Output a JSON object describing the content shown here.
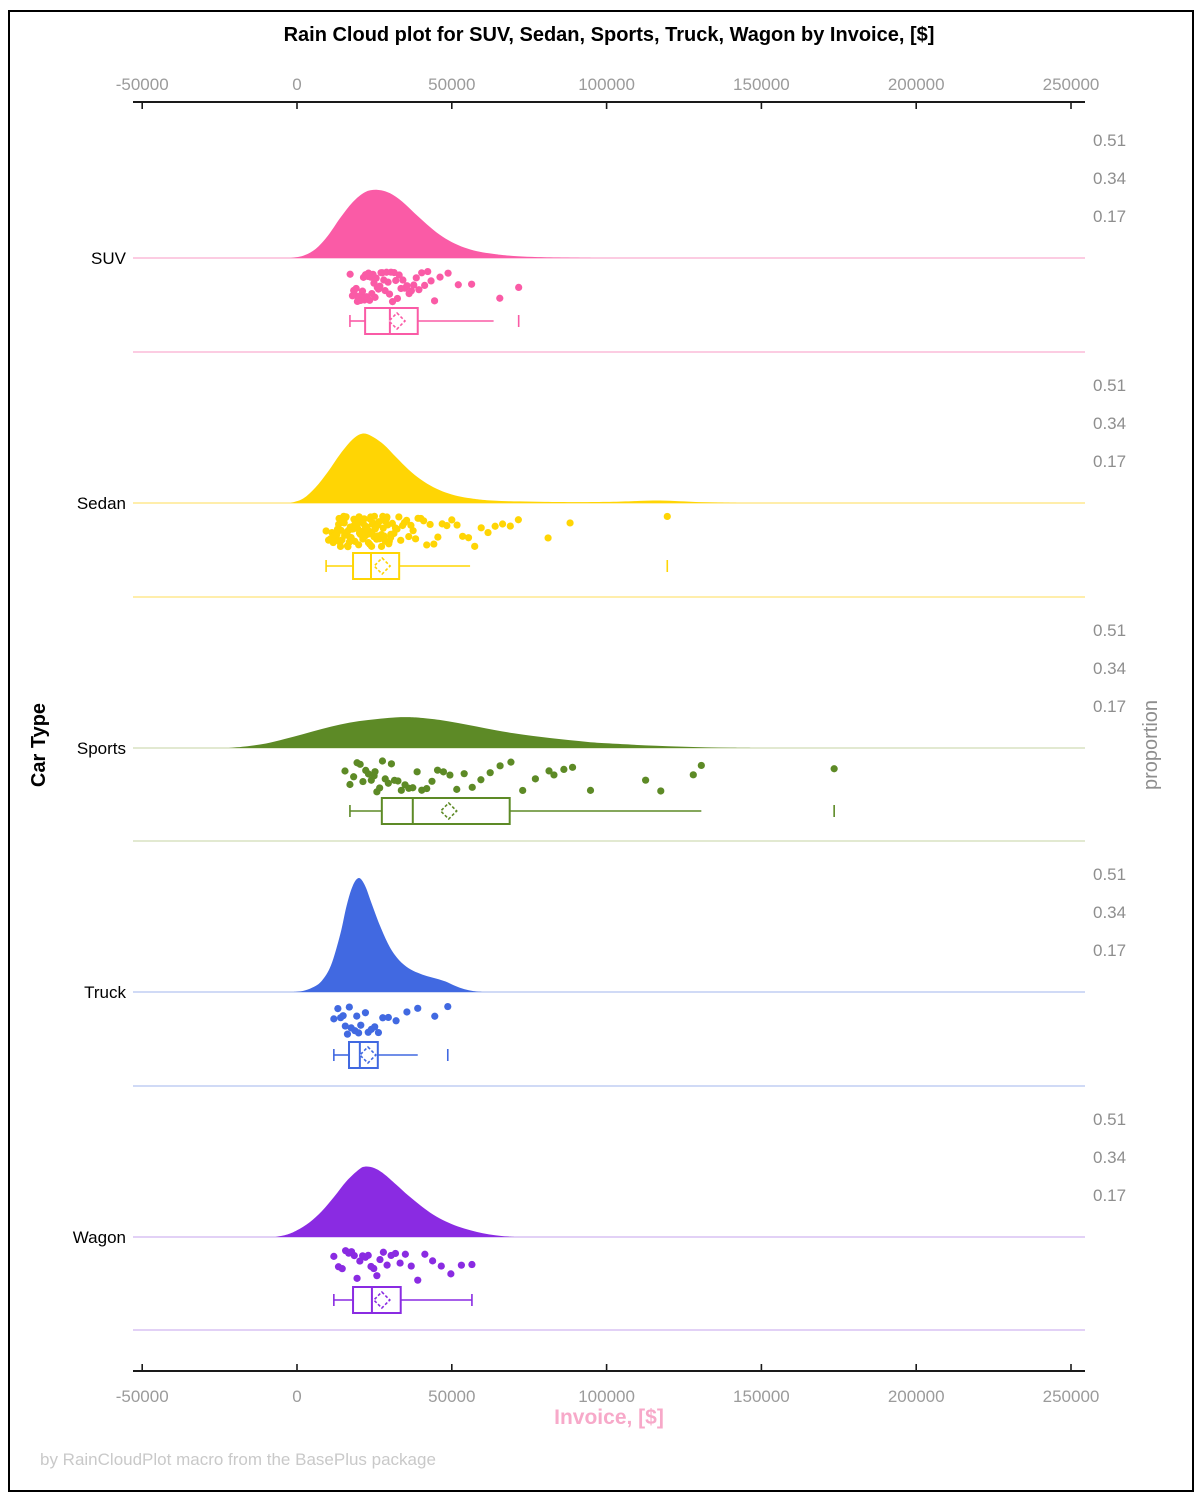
{
  "title": "Rain Cloud plot for SUV, Sedan, Sports, Truck, Wagon by Invoice, [$]",
  "footer": "by RainCloudPlot macro from the BasePlus package",
  "axis": {
    "x_label": "Invoice, [$]",
    "y_label_left": "Car Type",
    "y_label_right": "proportion",
    "tick_values": [
      -50000,
      0,
      50000,
      100000,
      150000,
      200000,
      250000
    ],
    "tick_labels": [
      "-50000",
      "0",
      "50000",
      "100000",
      "150000",
      "200000",
      "250000"
    ],
    "proportion_tick_labels": [
      "0.51",
      "0.34",
      "0.17"
    ],
    "proportion_tick_values": [
      0.51,
      0.34,
      0.17
    ]
  },
  "chart_data": {
    "type": "raincloud",
    "title": "Rain Cloud plot for SUV, Sedan, Sports, Truck, Wagon by Invoice, [$]",
    "xlabel": "Invoice, [$]",
    "ylabel": "Car Type",
    "ylabel_right": "proportion",
    "xlim": [
      -53000,
      254500
    ],
    "proportion_max": 0.51,
    "groups": [
      {
        "name": "SUV",
        "color": "#FA5BA6",
        "tint": "#FBBCD9",
        "density": [
          [
            -2000,
            0
          ],
          [
            2000,
            0.01
          ],
          [
            6000,
            0.04
          ],
          [
            10000,
            0.1
          ],
          [
            14000,
            0.18
          ],
          [
            18000,
            0.25
          ],
          [
            22000,
            0.295
          ],
          [
            26000,
            0.305
          ],
          [
            30000,
            0.29
          ],
          [
            34000,
            0.252
          ],
          [
            38000,
            0.2
          ],
          [
            42000,
            0.15
          ],
          [
            46000,
            0.105
          ],
          [
            50000,
            0.071
          ],
          [
            54000,
            0.047
          ],
          [
            58000,
            0.031
          ],
          [
            62000,
            0.021
          ],
          [
            66000,
            0.014
          ],
          [
            70000,
            0.009
          ],
          [
            76000,
            0.005
          ],
          [
            84000,
            0.002
          ],
          [
            95000,
            0
          ]
        ],
        "box": {
          "low": 17100,
          "q1": 22000,
          "median": 30000,
          "q3": 39000,
          "high": 63500,
          "far": 71600,
          "mean": 32300,
          "cap_high": false
        },
        "points": [
          17163,
          17909,
          18298,
          18744,
          19110,
          19513,
          19844,
          20201,
          20564,
          20912,
          21161,
          21470,
          21808,
          22114,
          22475,
          22835,
          23102,
          23465,
          23822,
          24166,
          24535,
          24858,
          25216,
          25574,
          25929,
          26312,
          26755,
          27151,
          27590,
          28024,
          28455,
          28926,
          29415,
          29887,
          30366,
          30856,
          31361,
          31892,
          32436,
          33003,
          33592,
          34205,
          34845,
          35513,
          36212,
          36945,
          37715,
          38524,
          39376,
          40275,
          41225,
          42231,
          43299,
          44435,
          46200,
          48800,
          52100,
          56400,
          65500,
          71600
        ]
      },
      {
        "name": "Sedan",
        "color": "#FFD504",
        "tint": "#FFE98F",
        "density": [
          [
            -2000,
            0
          ],
          [
            2000,
            0.02
          ],
          [
            6000,
            0.07
          ],
          [
            10000,
            0.14
          ],
          [
            14000,
            0.22
          ],
          [
            18000,
            0.285
          ],
          [
            21000,
            0.31
          ],
          [
            24000,
            0.3
          ],
          [
            28000,
            0.262
          ],
          [
            32000,
            0.205
          ],
          [
            36000,
            0.15
          ],
          [
            40000,
            0.105
          ],
          [
            44000,
            0.071
          ],
          [
            48000,
            0.047
          ],
          [
            52000,
            0.031
          ],
          [
            56000,
            0.021
          ],
          [
            60000,
            0.014
          ],
          [
            66000,
            0.009
          ],
          [
            72000,
            0.007
          ],
          [
            80000,
            0.005
          ],
          [
            90000,
            0.004
          ],
          [
            100000,
            0.005
          ],
          [
            108000,
            0.008
          ],
          [
            115000,
            0.011
          ],
          [
            122000,
            0.009
          ],
          [
            128000,
            0.005
          ],
          [
            135000,
            0.002
          ],
          [
            142000,
            0
          ]
        ],
        "box": {
          "low": 9400,
          "q1": 18100,
          "median": 23900,
          "q3": 33000,
          "high": 55900,
          "far": 119600,
          "mean": 27500,
          "cap_high": false
        },
        "points": [
          9400,
          10200,
          10800,
          11300,
          11700,
          12100,
          12500,
          12900,
          13300,
          13600,
          13900,
          14200,
          14500,
          14800,
          15100,
          15400,
          15700,
          16000,
          16300,
          16600,
          16900,
          17200,
          17500,
          17800,
          18100,
          18400,
          18700,
          19000,
          19300,
          19600,
          19900,
          20200,
          20500,
          20800,
          21100,
          21400,
          21700,
          22000,
          22300,
          22600,
          22900,
          23200,
          23500,
          23800,
          24100,
          24400,
          24700,
          25000,
          25300,
          25700,
          26100,
          26500,
          26900,
          27300,
          27700,
          28100,
          28500,
          28900,
          29300,
          29800,
          30300,
          30800,
          31300,
          31800,
          32300,
          32900,
          33500,
          34100,
          34700,
          35400,
          36100,
          36800,
          37500,
          38300,
          39100,
          40000,
          40900,
          41900,
          43000,
          44200,
          45500,
          46900,
          48400,
          50000,
          51700,
          53500,
          55400,
          57400,
          59500,
          61700,
          64000,
          66400,
          68900,
          71500,
          81100,
          88200,
          119600,
          13100,
          13450,
          14050,
          14650,
          15250,
          15850,
          16450,
          17050,
          17650,
          18250,
          18850,
          19450,
          20050,
          20650,
          21250,
          21850,
          22450,
          23050,
          23650,
          24250,
          24850,
          25450,
          26050,
          26650,
          27250,
          27850,
          28450,
          29050,
          29650,
          30250
        ]
      },
      {
        "name": "Sports",
        "color": "#5D8A26",
        "tint": "#D8E2C2",
        "density": [
          [
            -22000,
            0
          ],
          [
            -16000,
            0.008
          ],
          [
            -10000,
            0.02
          ],
          [
            -4000,
            0.04
          ],
          [
            2000,
            0.062
          ],
          [
            8000,
            0.085
          ],
          [
            14000,
            0.105
          ],
          [
            20000,
            0.12
          ],
          [
            26000,
            0.13
          ],
          [
            32000,
            0.137
          ],
          [
            36000,
            0.138
          ],
          [
            40000,
            0.135
          ],
          [
            46000,
            0.126
          ],
          [
            52000,
            0.112
          ],
          [
            58000,
            0.096
          ],
          [
            64000,
            0.08
          ],
          [
            70000,
            0.066
          ],
          [
            76000,
            0.054
          ],
          [
            82000,
            0.044
          ],
          [
            88000,
            0.035
          ],
          [
            94000,
            0.027
          ],
          [
            100000,
            0.021
          ],
          [
            108000,
            0.015
          ],
          [
            116000,
            0.01
          ],
          [
            124000,
            0.006
          ],
          [
            132000,
            0.003
          ],
          [
            140000,
            0.001
          ],
          [
            148000,
            0
          ]
        ],
        "box": {
          "low": 17100,
          "q1": 27400,
          "median": 37400,
          "q3": 68700,
          "high": 130600,
          "far": 173500,
          "mean": 49000,
          "cap_high": false
        },
        "points": [
          15500,
          17100,
          18300,
          19400,
          20400,
          21300,
          22200,
          23100,
          24000,
          24900,
          25200,
          25800,
          26700,
          27600,
          28500,
          29500,
          30500,
          31500,
          32600,
          33700,
          34900,
          36100,
          37400,
          38800,
          40300,
          41900,
          43600,
          45400,
          47300,
          49400,
          51600,
          54000,
          56600,
          59400,
          62400,
          65600,
          69100,
          72900,
          77000,
          81400,
          83000,
          86200,
          89000,
          94800,
          112600,
          117500,
          128000,
          130600,
          173500
        ]
      },
      {
        "name": "Truck",
        "color": "#4169E1",
        "tint": "#C0CDF4",
        "density": [
          [
            -1000,
            0
          ],
          [
            2000,
            0.005
          ],
          [
            5000,
            0.02
          ],
          [
            8000,
            0.05
          ],
          [
            11000,
            0.12
          ],
          [
            14000,
            0.26
          ],
          [
            16000,
            0.385
          ],
          [
            18000,
            0.475
          ],
          [
            20000,
            0.51
          ],
          [
            22000,
            0.475
          ],
          [
            24000,
            0.4
          ],
          [
            27000,
            0.29
          ],
          [
            30000,
            0.2
          ],
          [
            33000,
            0.142
          ],
          [
            36000,
            0.107
          ],
          [
            39000,
            0.086
          ],
          [
            42000,
            0.071
          ],
          [
            45000,
            0.06
          ],
          [
            48000,
            0.047
          ],
          [
            51000,
            0.028
          ],
          [
            54000,
            0.013
          ],
          [
            57000,
            0.004
          ],
          [
            60000,
            0
          ]
        ],
        "box": {
          "low": 11900,
          "q1": 16800,
          "median": 20300,
          "q3": 26100,
          "high": 39000,
          "far": 48700,
          "mean": 22900,
          "cap_high": false
        },
        "points": [
          11900,
          13200,
          14100,
          14900,
          15600,
          16300,
          16900,
          17500,
          18700,
          19300,
          19900,
          20600,
          22100,
          23000,
          24000,
          25100,
          26300,
          27700,
          29500,
          32000,
          35500,
          39000,
          44500,
          48700
        ]
      },
      {
        "name": "Wagon",
        "color": "#8A2BE2",
        "tint": "#D9C2F3",
        "density": [
          [
            -7000,
            0
          ],
          [
            -3000,
            0.012
          ],
          [
            0,
            0.03
          ],
          [
            4000,
            0.065
          ],
          [
            8000,
            0.115
          ],
          [
            12000,
            0.18
          ],
          [
            16000,
            0.25
          ],
          [
            20000,
            0.302
          ],
          [
            22000,
            0.315
          ],
          [
            25000,
            0.308
          ],
          [
            28000,
            0.283
          ],
          [
            32000,
            0.235
          ],
          [
            36000,
            0.185
          ],
          [
            40000,
            0.14
          ],
          [
            44000,
            0.1
          ],
          [
            48000,
            0.07
          ],
          [
            52000,
            0.047
          ],
          [
            56000,
            0.03
          ],
          [
            60000,
            0.017
          ],
          [
            64000,
            0.008
          ],
          [
            68000,
            0.002
          ],
          [
            71000,
            0
          ]
        ],
        "box": {
          "low": 11900,
          "q1": 18100,
          "median": 24200,
          "q3": 33500,
          "high": 56500,
          "far": null,
          "mean": 27400,
          "cap_high": true
        },
        "points": [
          11900,
          13400,
          14600,
          15700,
          16700,
          17600,
          18500,
          19400,
          20300,
          21200,
          22100,
          23000,
          23900,
          24800,
          25800,
          26800,
          27900,
          29100,
          30400,
          31800,
          33300,
          35000,
          36900,
          39000,
          41300,
          43800,
          46600,
          49700,
          53100,
          56500
        ]
      }
    ]
  }
}
